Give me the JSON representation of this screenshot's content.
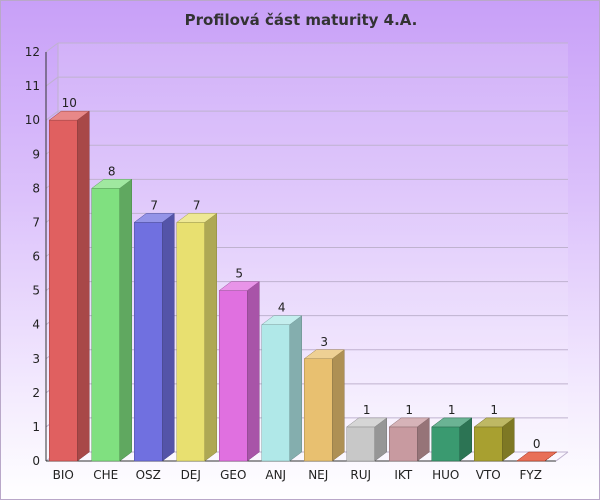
{
  "chart_data": {
    "type": "bar",
    "title": "Profilová část maturity 4.A.",
    "categories": [
      "BIO",
      "CHE",
      "OSZ",
      "DEJ",
      "GEO",
      "ANJ",
      "NEJ",
      "RUJ",
      "IKT",
      "HUO",
      "VTO",
      "FYZ"
    ],
    "values": [
      10,
      8,
      7,
      7,
      5,
      4,
      3,
      1,
      1,
      1,
      1,
      0
    ],
    "colors": [
      "#e06060",
      "#80e080",
      "#7070e0",
      "#e8e070",
      "#e070e0",
      "#b0e8e8",
      "#e8c070",
      "#c8c8c8",
      "#c89aa0",
      "#3a9a70",
      "#a8a030",
      "#e04020"
    ],
    "ylim": [
      0,
      12
    ],
    "yticks": [
      0,
      1,
      2,
      3,
      4,
      5,
      6,
      7,
      8,
      9,
      10,
      11,
      12
    ],
    "grid": true,
    "style": "3d-bars"
  }
}
